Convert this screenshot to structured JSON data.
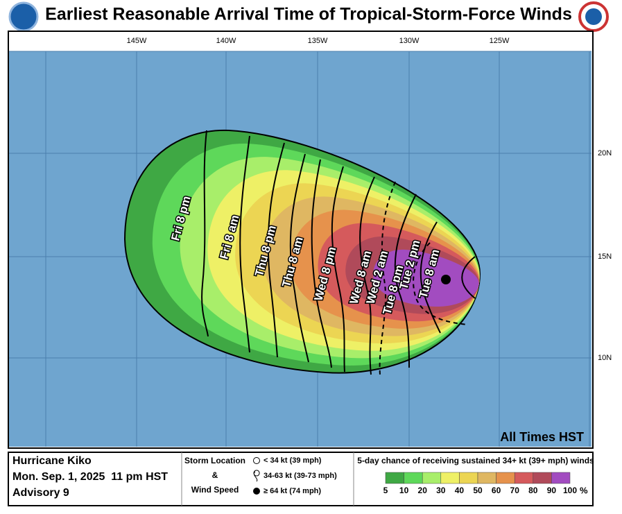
{
  "header": {
    "title": "Earliest Reasonable Arrival Time of Tropical-Storm-Force Winds"
  },
  "map": {
    "lon_labels": [
      "145W",
      "140W",
      "135W",
      "130W",
      "125W"
    ],
    "lat_labels": [
      "20N",
      "15N",
      "10N"
    ],
    "time_note": "All Times HST",
    "contour_labels": [
      "Fri 8 pm",
      "Fri 8 am",
      "Thu 8 pm",
      "Thu 8 am",
      "Wed 8 pm",
      "Wed 8 am",
      "Wed 2 am",
      "Tue 8 pm",
      "Tue 2 pm",
      "Tue 8 am"
    ]
  },
  "footer": {
    "storm": {
      "name": "Hurricane Kiko",
      "date": "Mon. Sep. 1, 2025  11 pm HST",
      "advisory": "Advisory 9"
    },
    "storm_legend": {
      "line1": "Storm Location",
      "line2": "&",
      "line3": "Wind Speed",
      "items": [
        "< 34 kt (39 mph)",
        "34-63 kt (39-73 mph)",
        "≥ 64 kt (74 mph)"
      ]
    },
    "probability": {
      "title": "5-day chance of receiving sustained 34+ kt (39+ mph) winds",
      "labels": [
        "5",
        "10",
        "20",
        "30",
        "40",
        "50",
        "60",
        "70",
        "80",
        "90",
        "100"
      ],
      "unit": "%",
      "colors": [
        "#3fa844",
        "#5ed85a",
        "#a8ee6a",
        "#eef066",
        "#ecd553",
        "#dfb762",
        "#e6924c",
        "#d55a5c",
        "#b04a5a",
        "#a24cc0"
      ]
    }
  }
}
